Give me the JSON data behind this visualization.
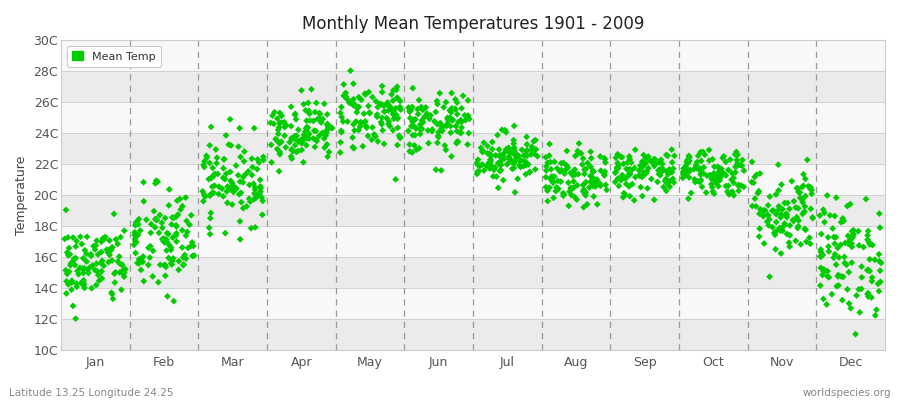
{
  "title": "Monthly Mean Temperatures 1901 - 2009",
  "ylabel": "Temperature",
  "ytick_labels": [
    "10C",
    "12C",
    "14C",
    "16C",
    "18C",
    "20C",
    "22C",
    "24C",
    "26C",
    "28C",
    "30C"
  ],
  "ytick_values": [
    10,
    12,
    14,
    16,
    18,
    20,
    22,
    24,
    26,
    28,
    30
  ],
  "ylim": [
    10,
    30
  ],
  "months": [
    "Jan",
    "Feb",
    "Mar",
    "Apr",
    "May",
    "Jun",
    "Jul",
    "Aug",
    "Sep",
    "Oct",
    "Nov",
    "Dec"
  ],
  "n_years": 109,
  "seed": 42,
  "dot_color": "#00CC00",
  "dot_size": 12,
  "bg_outer": "#FFFFFF",
  "bg_band_light": "#EBEBEB",
  "bg_band_white": "#F8F8F8",
  "dashed_color": "#999999",
  "legend_label": "Mean Temp",
  "footer_left": "Latitude 13.25 Longitude 24.25",
  "footer_right": "worldspecies.org",
  "mean_temps": [
    15.5,
    17.0,
    21.0,
    24.2,
    25.2,
    24.5,
    22.5,
    21.0,
    21.5,
    21.5,
    19.0,
    16.0
  ],
  "std_temps": [
    1.3,
    1.8,
    1.4,
    1.0,
    1.2,
    1.0,
    0.8,
    0.9,
    0.8,
    0.8,
    1.5,
    1.9
  ]
}
